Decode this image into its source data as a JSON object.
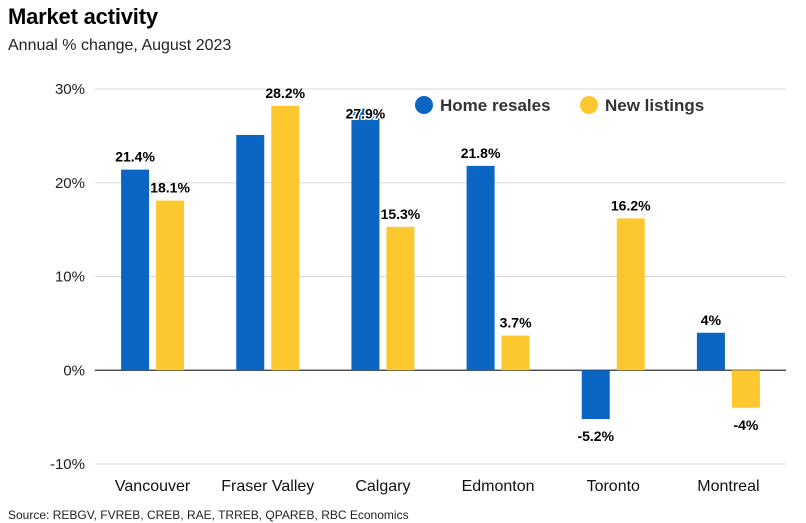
{
  "title": "Market activity",
  "subtitle": "Annual % change, August 2023",
  "source": "Source: REBGV, FVREB, CREB, RAE, TRREB, QPAREB, RBC Economics",
  "colors": {
    "home_resales": "#0b65c2",
    "new_listings": "#fdc82f",
    "grid": "#d9d9d9",
    "axis": "#333333"
  },
  "chart_data": {
    "type": "bar",
    "categories": [
      "Vancouver",
      "Fraser Valley",
      "Calgary",
      "Edmonton",
      "Toronto",
      "Montreal"
    ],
    "series": [
      {
        "name": "Home resales",
        "values": [
          21.4,
          25.1,
          27.9,
          21.8,
          -5.2,
          4
        ],
        "labels": [
          "21.4%",
          "",
          "27.9%",
          "21.8%",
          "-5.2%",
          "4%"
        ]
      },
      {
        "name": "New listings",
        "values": [
          18.1,
          28.2,
          15.3,
          3.7,
          16.2,
          -4
        ],
        "labels": [
          "18.1%",
          "28.2%",
          "15.3%",
          "3.7%",
          "16.2%",
          "-4%"
        ]
      }
    ],
    "yticks": [
      "30%",
      "20%",
      "10%",
      "0%",
      "-10%"
    ],
    "ytick_values": [
      30,
      20,
      10,
      0,
      -10
    ],
    "ylim": [
      -10,
      30
    ],
    "grid": true,
    "legend_position": "top-right"
  }
}
